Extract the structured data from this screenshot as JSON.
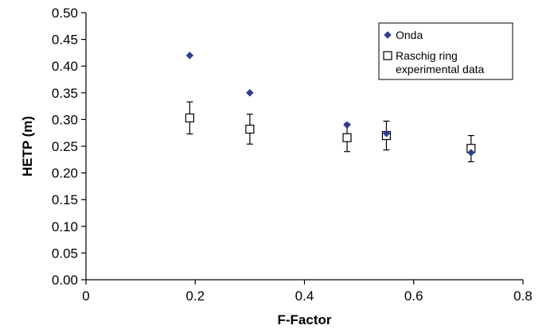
{
  "chart_data": {
    "type": "scatter",
    "xlabel": "F-Factor",
    "ylabel": "HETP (m)",
    "xlim": [
      0,
      0.8
    ],
    "ylim": [
      0,
      0.5
    ],
    "x_ticks": [
      "0",
      "0.2",
      "0.4",
      "0.6",
      "0.8"
    ],
    "y_ticks": [
      "0.00",
      "0.05",
      "0.10",
      "0.15",
      "0.20",
      "0.25",
      "0.30",
      "0.35",
      "0.40",
      "0.45",
      "0.50"
    ],
    "grid": false,
    "legend_position": "top-right",
    "series": [
      {
        "name": "Onda",
        "marker": "diamond",
        "color": "#2E3E8F",
        "points": [
          {
            "x": 0.19,
            "y": 0.42
          },
          {
            "x": 0.3,
            "y": 0.35
          },
          {
            "x": 0.478,
            "y": 0.29
          },
          {
            "x": 0.55,
            "y": 0.274
          },
          {
            "x": 0.705,
            "y": 0.238
          }
        ]
      },
      {
        "name": "Raschig ring experimental data",
        "legend_lines": [
          "Raschig ring",
          "experimental data"
        ],
        "marker": "open-square",
        "color": "#000000",
        "points": [
          {
            "x": 0.19,
            "y": 0.303,
            "err_low": 0.273,
            "err_high": 0.333
          },
          {
            "x": 0.3,
            "y": 0.282,
            "err_low": 0.254,
            "err_high": 0.31
          },
          {
            "x": 0.478,
            "y": 0.266,
            "err_low": 0.24,
            "err_high": 0.292
          },
          {
            "x": 0.55,
            "y": 0.27,
            "err_low": 0.243,
            "err_high": 0.297
          },
          {
            "x": 0.705,
            "y": 0.246,
            "err_low": 0.221,
            "err_high": 0.27
          }
        ]
      }
    ]
  }
}
